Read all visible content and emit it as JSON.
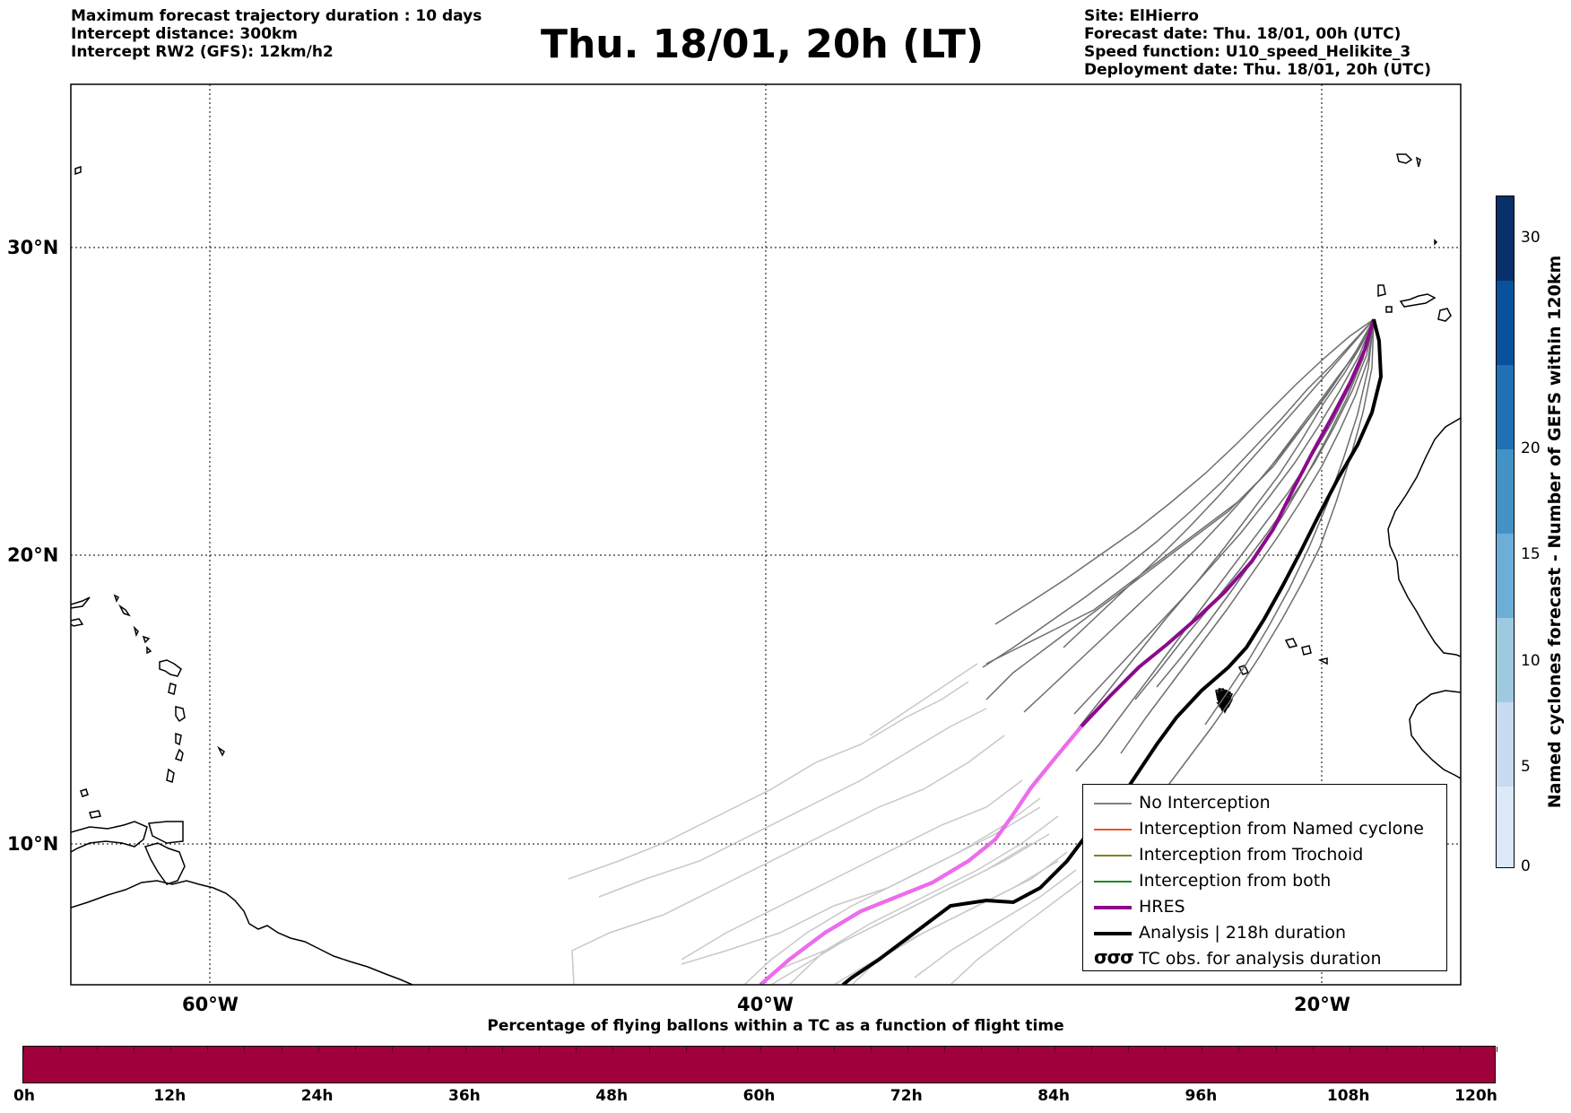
{
  "header_left": [
    "Maximum forecast trajectory duration : 10 days",
    "Intercept distance: 300km",
    "Intercept RW2 (GFS):  12km/h2"
  ],
  "title": "Thu. 18/01, 20h (LT)",
  "header_right": [
    "Site: ElHierro",
    "Forecast date: Thu. 18/01, 00h (UTC)",
    "Speed function: U10_speed_Helikite_3",
    "Deployment date: Thu. 18/01, 20h (UTC)"
  ],
  "map": {
    "lon_ticks": [
      "60°W",
      "40°W",
      "20°W"
    ],
    "lat_ticks": [
      "30°N",
      "20°N",
      "10°N"
    ],
    "colors": {
      "no_interception": "#6e6e6e",
      "ensemble_light": "#c8c8c8",
      "hres": "#8b0a8b",
      "hres_light": "#ef6bef",
      "analysis": "#000000"
    }
  },
  "legend": [
    {
      "label": "No Interception",
      "color": "#808080"
    },
    {
      "label": "Interception from Named cyclone",
      "color": "#e8562a"
    },
    {
      "label": "Interception from Trochoid",
      "color": "#808020"
    },
    {
      "label": "Interception from both",
      "color": "#1e8a1e"
    },
    {
      "label": "HRES",
      "color": "#8b0a8b"
    },
    {
      "label": "Analysis | 218h duration",
      "color": "#000000"
    },
    {
      "label": "TC obs. for analysis duration",
      "icon": "cyclone-symbols",
      "glyphs": "σσσ"
    }
  ],
  "colorbar": {
    "title": "Named cyclones forecast - Number of GEFS within 120km",
    "ticks": [
      "0",
      "5",
      "10",
      "15",
      "20",
      "30"
    ],
    "colors": [
      "#dce9f6",
      "#c6dbef",
      "#9ecae1",
      "#6baed6",
      "#4292c6",
      "#2171b5",
      "#08519c",
      "#08306b"
    ]
  },
  "bottom": {
    "title": "Percentage of flying ballons within a TC as a function of flight time",
    "color": "#a0003c",
    "ticks": [
      "0h",
      "12h",
      "24h",
      "36h",
      "48h",
      "60h",
      "72h",
      "84h",
      "96h",
      "108h",
      "120h"
    ]
  }
}
